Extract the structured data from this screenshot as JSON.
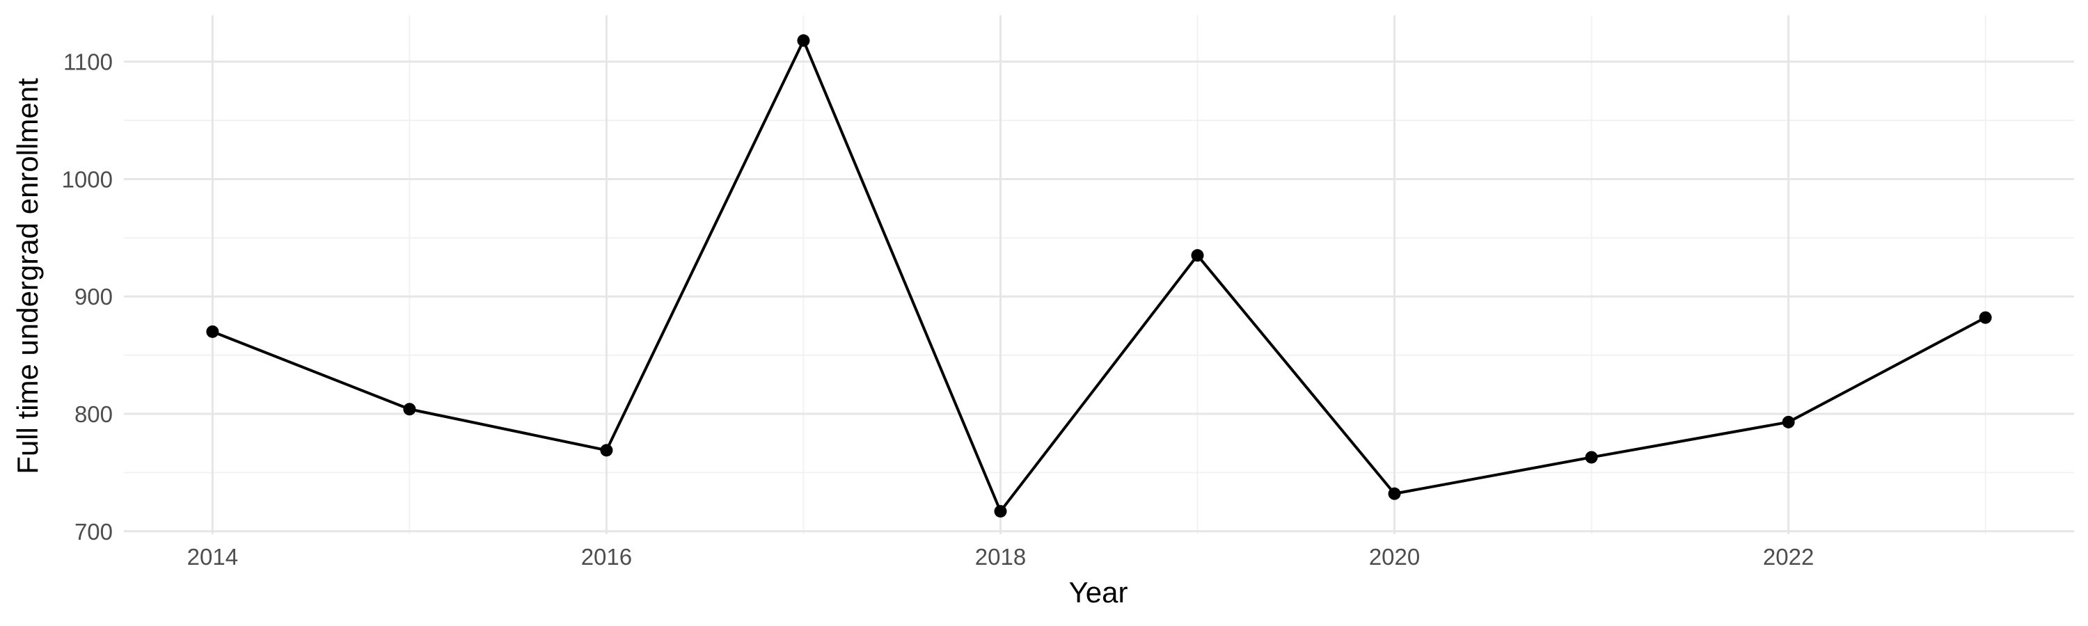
{
  "chart_data": {
    "type": "line",
    "title": "",
    "xlabel": "Year",
    "ylabel": "Full time undergrad enrollment",
    "x": [
      2014,
      2015,
      2016,
      2017,
      2018,
      2019,
      2020,
      2021,
      2022,
      2023
    ],
    "series": [
      {
        "values": [
          870,
          804,
          769,
          1118,
          717,
          935,
          732,
          763,
          793,
          882
        ],
        "color": "#000000"
      }
    ],
    "xlim": [
      2013.55,
      2023.45
    ],
    "ylim": [
      697.5,
      1139.5
    ],
    "x_ticks": [
      2014,
      2016,
      2018,
      2020,
      2022
    ],
    "x_tick_labels": [
      "2014",
      "2016",
      "2018",
      "2020",
      "2022"
    ],
    "y_ticks": [
      700,
      800,
      900,
      1000,
      1100
    ],
    "y_tick_labels": [
      "700",
      "800",
      "900",
      "1000",
      "1100"
    ],
    "grid": true,
    "legend": "none"
  }
}
